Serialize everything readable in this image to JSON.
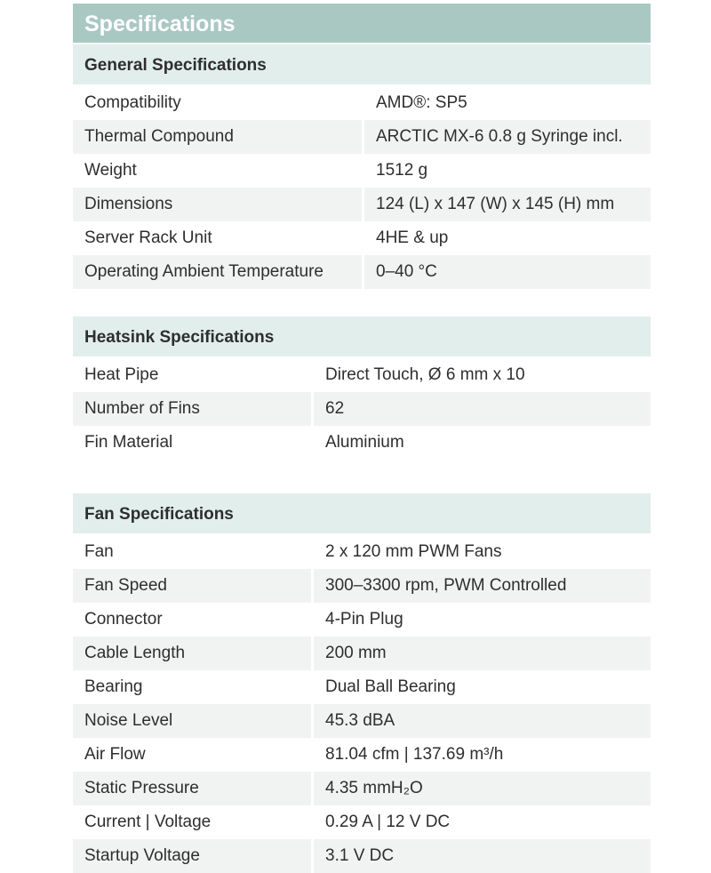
{
  "title": "Specifications",
  "colors": {
    "title_bg": "#a9c8c2",
    "section_bg": "#e2eeec",
    "alt_row_bg": "#f1f2f2"
  },
  "sections": {
    "general": {
      "heading": "General Specifications",
      "rows": [
        {
          "label": "Compatibility",
          "value": "AMD®: SP5"
        },
        {
          "label": "Thermal Compound",
          "value": "ARCTIC MX-6 0.8 g Syringe incl."
        },
        {
          "label": "Weight",
          "value": "1512 g"
        },
        {
          "label": "Dimensions",
          "value": "124 (L) x 147 (W) x 145 (H) mm"
        },
        {
          "label": "Server Rack Unit",
          "value": "4HE & up"
        },
        {
          "label": "Operating Ambient Temperature",
          "value": "0–40 °C"
        }
      ]
    },
    "heatsink": {
      "heading": "Heatsink Specifications",
      "rows": [
        {
          "label": "Heat Pipe",
          "value": "Direct Touch, Ø 6 mm x 10"
        },
        {
          "label": "Number of Fins",
          "value": "62"
        },
        {
          "label": "Fin Material",
          "value": "Aluminium"
        }
      ]
    },
    "fan": {
      "heading": "Fan Specifications",
      "rows": [
        {
          "label": "Fan",
          "value": "2 x 120 mm PWM Fans"
        },
        {
          "label": "Fan Speed",
          "value": "300–3300 rpm, PWM Controlled"
        },
        {
          "label": "Connector",
          "value": "4-Pin Plug"
        },
        {
          "label": "Cable Length",
          "value": "200 mm"
        },
        {
          "label": "Bearing",
          "value": "Dual Ball Bearing"
        },
        {
          "label": "Noise Level",
          "value": "45.3 dBA"
        },
        {
          "label": "Air Flow",
          "value": "81.04 cfm | 137.69 m³/h"
        },
        {
          "label": "Static Pressure",
          "value": "4.35 mmH₂O"
        },
        {
          "label": "Current | Voltage",
          "value": "0.29 A | 12 V DC"
        },
        {
          "label": "Startup Voltage",
          "value": "3.1 V DC"
        }
      ]
    }
  }
}
